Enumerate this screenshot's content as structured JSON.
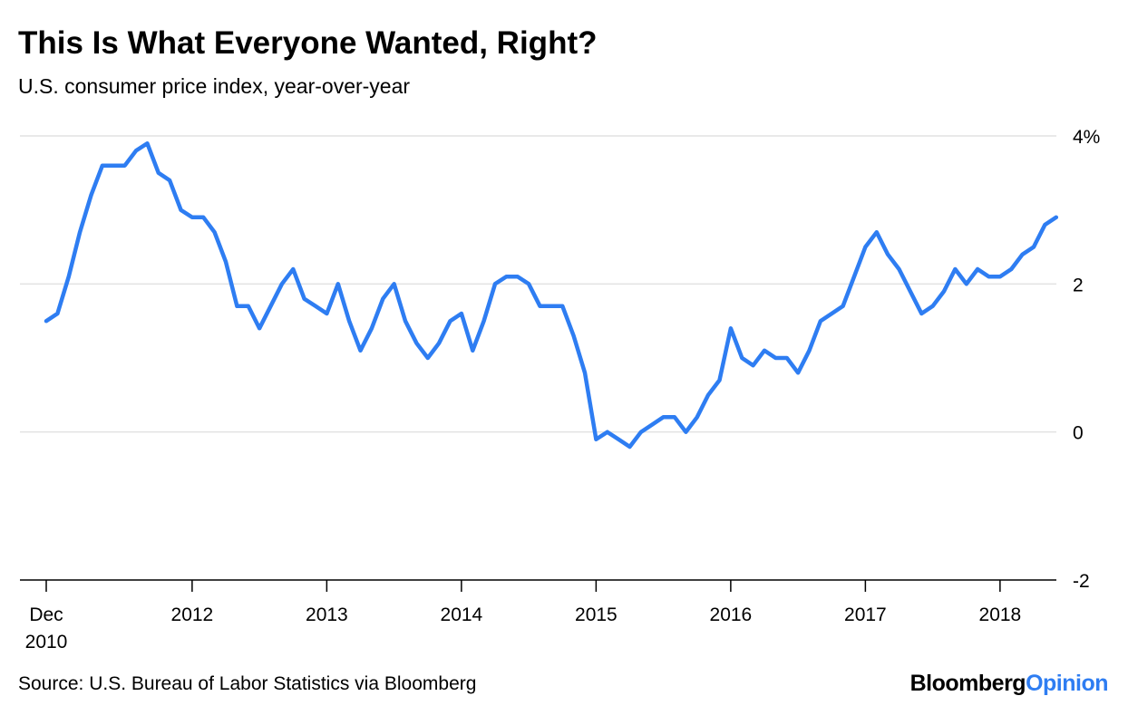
{
  "header": {
    "title": "This Is What Everyone Wanted, Right?",
    "subtitle": "U.S. consumer price index, year-over-year"
  },
  "footer": {
    "source": "Source: U.S. Bureau of Labor Statistics via Bloomberg",
    "logo_part1": "Bloomberg",
    "logo_part2": "Opinion"
  },
  "colors": {
    "line": "#2e7df2",
    "grid": "#e2e2e2",
    "axis": "#000000",
    "logo_accent": "#2e7df2"
  },
  "chart_data": {
    "type": "line",
    "title": "This Is What Everyone Wanted, Right?",
    "subtitle": "U.S. consumer price index, year-over-year",
    "xlabel": "",
    "ylabel": "",
    "ylim": [
      -2,
      4
    ],
    "y_ticks": [
      {
        "value": 4,
        "label": "4%"
      },
      {
        "value": 2,
        "label": "2"
      },
      {
        "value": 0,
        "label": "0"
      },
      {
        "value": -2,
        "label": "-2"
      }
    ],
    "x_range": [
      "2010-12",
      "2018-07"
    ],
    "x_ticks": [
      {
        "date": "2010-12",
        "label": [
          "Dec",
          "2010"
        ]
      },
      {
        "date": "2012-01",
        "label": [
          "2012"
        ]
      },
      {
        "date": "2013-01",
        "label": [
          "2013"
        ]
      },
      {
        "date": "2014-01",
        "label": [
          "2014"
        ]
      },
      {
        "date": "2015-01",
        "label": [
          "2015"
        ]
      },
      {
        "date": "2016-01",
        "label": [
          "2016"
        ]
      },
      {
        "date": "2017-01",
        "label": [
          "2017"
        ]
      },
      {
        "date": "2018-01",
        "label": [
          "2018"
        ]
      }
    ],
    "grid": true,
    "legend": false,
    "series": [
      {
        "x": [
          "2010-12",
          "2011-01",
          "2011-02",
          "2011-03",
          "2011-04",
          "2011-05",
          "2011-06",
          "2011-07",
          "2011-08",
          "2011-09",
          "2011-10",
          "2011-11",
          "2011-12",
          "2012-01",
          "2012-02",
          "2012-03",
          "2012-04",
          "2012-05",
          "2012-06",
          "2012-07",
          "2012-08",
          "2012-09",
          "2012-10",
          "2012-11",
          "2012-12",
          "2013-01",
          "2013-02",
          "2013-03",
          "2013-04",
          "2013-05",
          "2013-06",
          "2013-07",
          "2013-08",
          "2013-09",
          "2013-10",
          "2013-11",
          "2013-12",
          "2014-01",
          "2014-02",
          "2014-03",
          "2014-04",
          "2014-05",
          "2014-06",
          "2014-07",
          "2014-08",
          "2014-09",
          "2014-10",
          "2014-11",
          "2014-12",
          "2015-01",
          "2015-02",
          "2015-03",
          "2015-04",
          "2015-05",
          "2015-06",
          "2015-07",
          "2015-08",
          "2015-09",
          "2015-10",
          "2015-11",
          "2015-12",
          "2016-01",
          "2016-02",
          "2016-03",
          "2016-04",
          "2016-05",
          "2016-06",
          "2016-07",
          "2016-08",
          "2016-09",
          "2016-10",
          "2016-11",
          "2016-12",
          "2017-01",
          "2017-02",
          "2017-03",
          "2017-04",
          "2017-05",
          "2017-06",
          "2017-07",
          "2017-08",
          "2017-09",
          "2017-10",
          "2017-11",
          "2017-12",
          "2018-01",
          "2018-02",
          "2018-03",
          "2018-04",
          "2018-05",
          "2018-06"
        ],
        "values": [
          1.5,
          1.6,
          2.1,
          2.7,
          3.2,
          3.6,
          3.6,
          3.6,
          3.8,
          3.9,
          3.5,
          3.4,
          3.0,
          2.9,
          2.9,
          2.7,
          2.3,
          1.7,
          1.7,
          1.4,
          1.7,
          2.0,
          2.2,
          1.8,
          1.7,
          1.6,
          2.0,
          1.5,
          1.1,
          1.4,
          1.8,
          2.0,
          1.5,
          1.2,
          1.0,
          1.2,
          1.5,
          1.6,
          1.1,
          1.5,
          2.0,
          2.1,
          2.1,
          2.0,
          1.7,
          1.7,
          1.7,
          1.3,
          0.8,
          -0.1,
          0.0,
          -0.1,
          -0.2,
          0.0,
          0.1,
          0.2,
          0.2,
          0.0,
          0.2,
          0.5,
          0.7,
          1.4,
          1.0,
          0.9,
          1.1,
          1.0,
          1.0,
          0.8,
          1.1,
          1.5,
          1.6,
          1.7,
          2.1,
          2.5,
          2.7,
          2.4,
          2.2,
          1.9,
          1.6,
          1.7,
          1.9,
          2.2,
          2.0,
          2.2,
          2.1,
          2.1,
          2.2,
          2.4,
          2.5,
          2.8,
          2.9
        ]
      }
    ]
  }
}
